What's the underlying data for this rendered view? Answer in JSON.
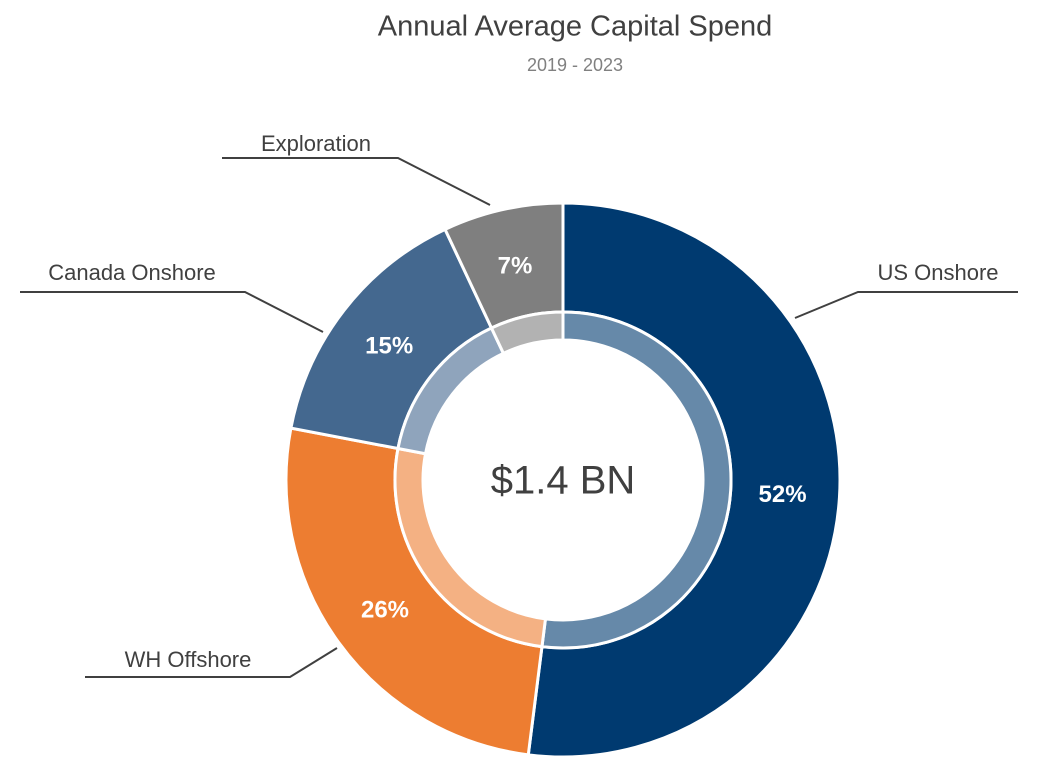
{
  "chart_data": {
    "type": "donut",
    "title": "Annual Average Capital Spend",
    "subtitle": "2019 - 2023",
    "center_label": "$1.4 BN",
    "categories": [
      "US Onshore",
      "WH Offshore",
      "Canada Onshore",
      "Exploration"
    ],
    "values": [
      52,
      26,
      15,
      7
    ],
    "value_labels": [
      "52%",
      "26%",
      "15%",
      "7%"
    ],
    "colors": [
      "#003a70",
      "#ed7d31",
      "#44688f",
      "#7f7f7f"
    ]
  }
}
